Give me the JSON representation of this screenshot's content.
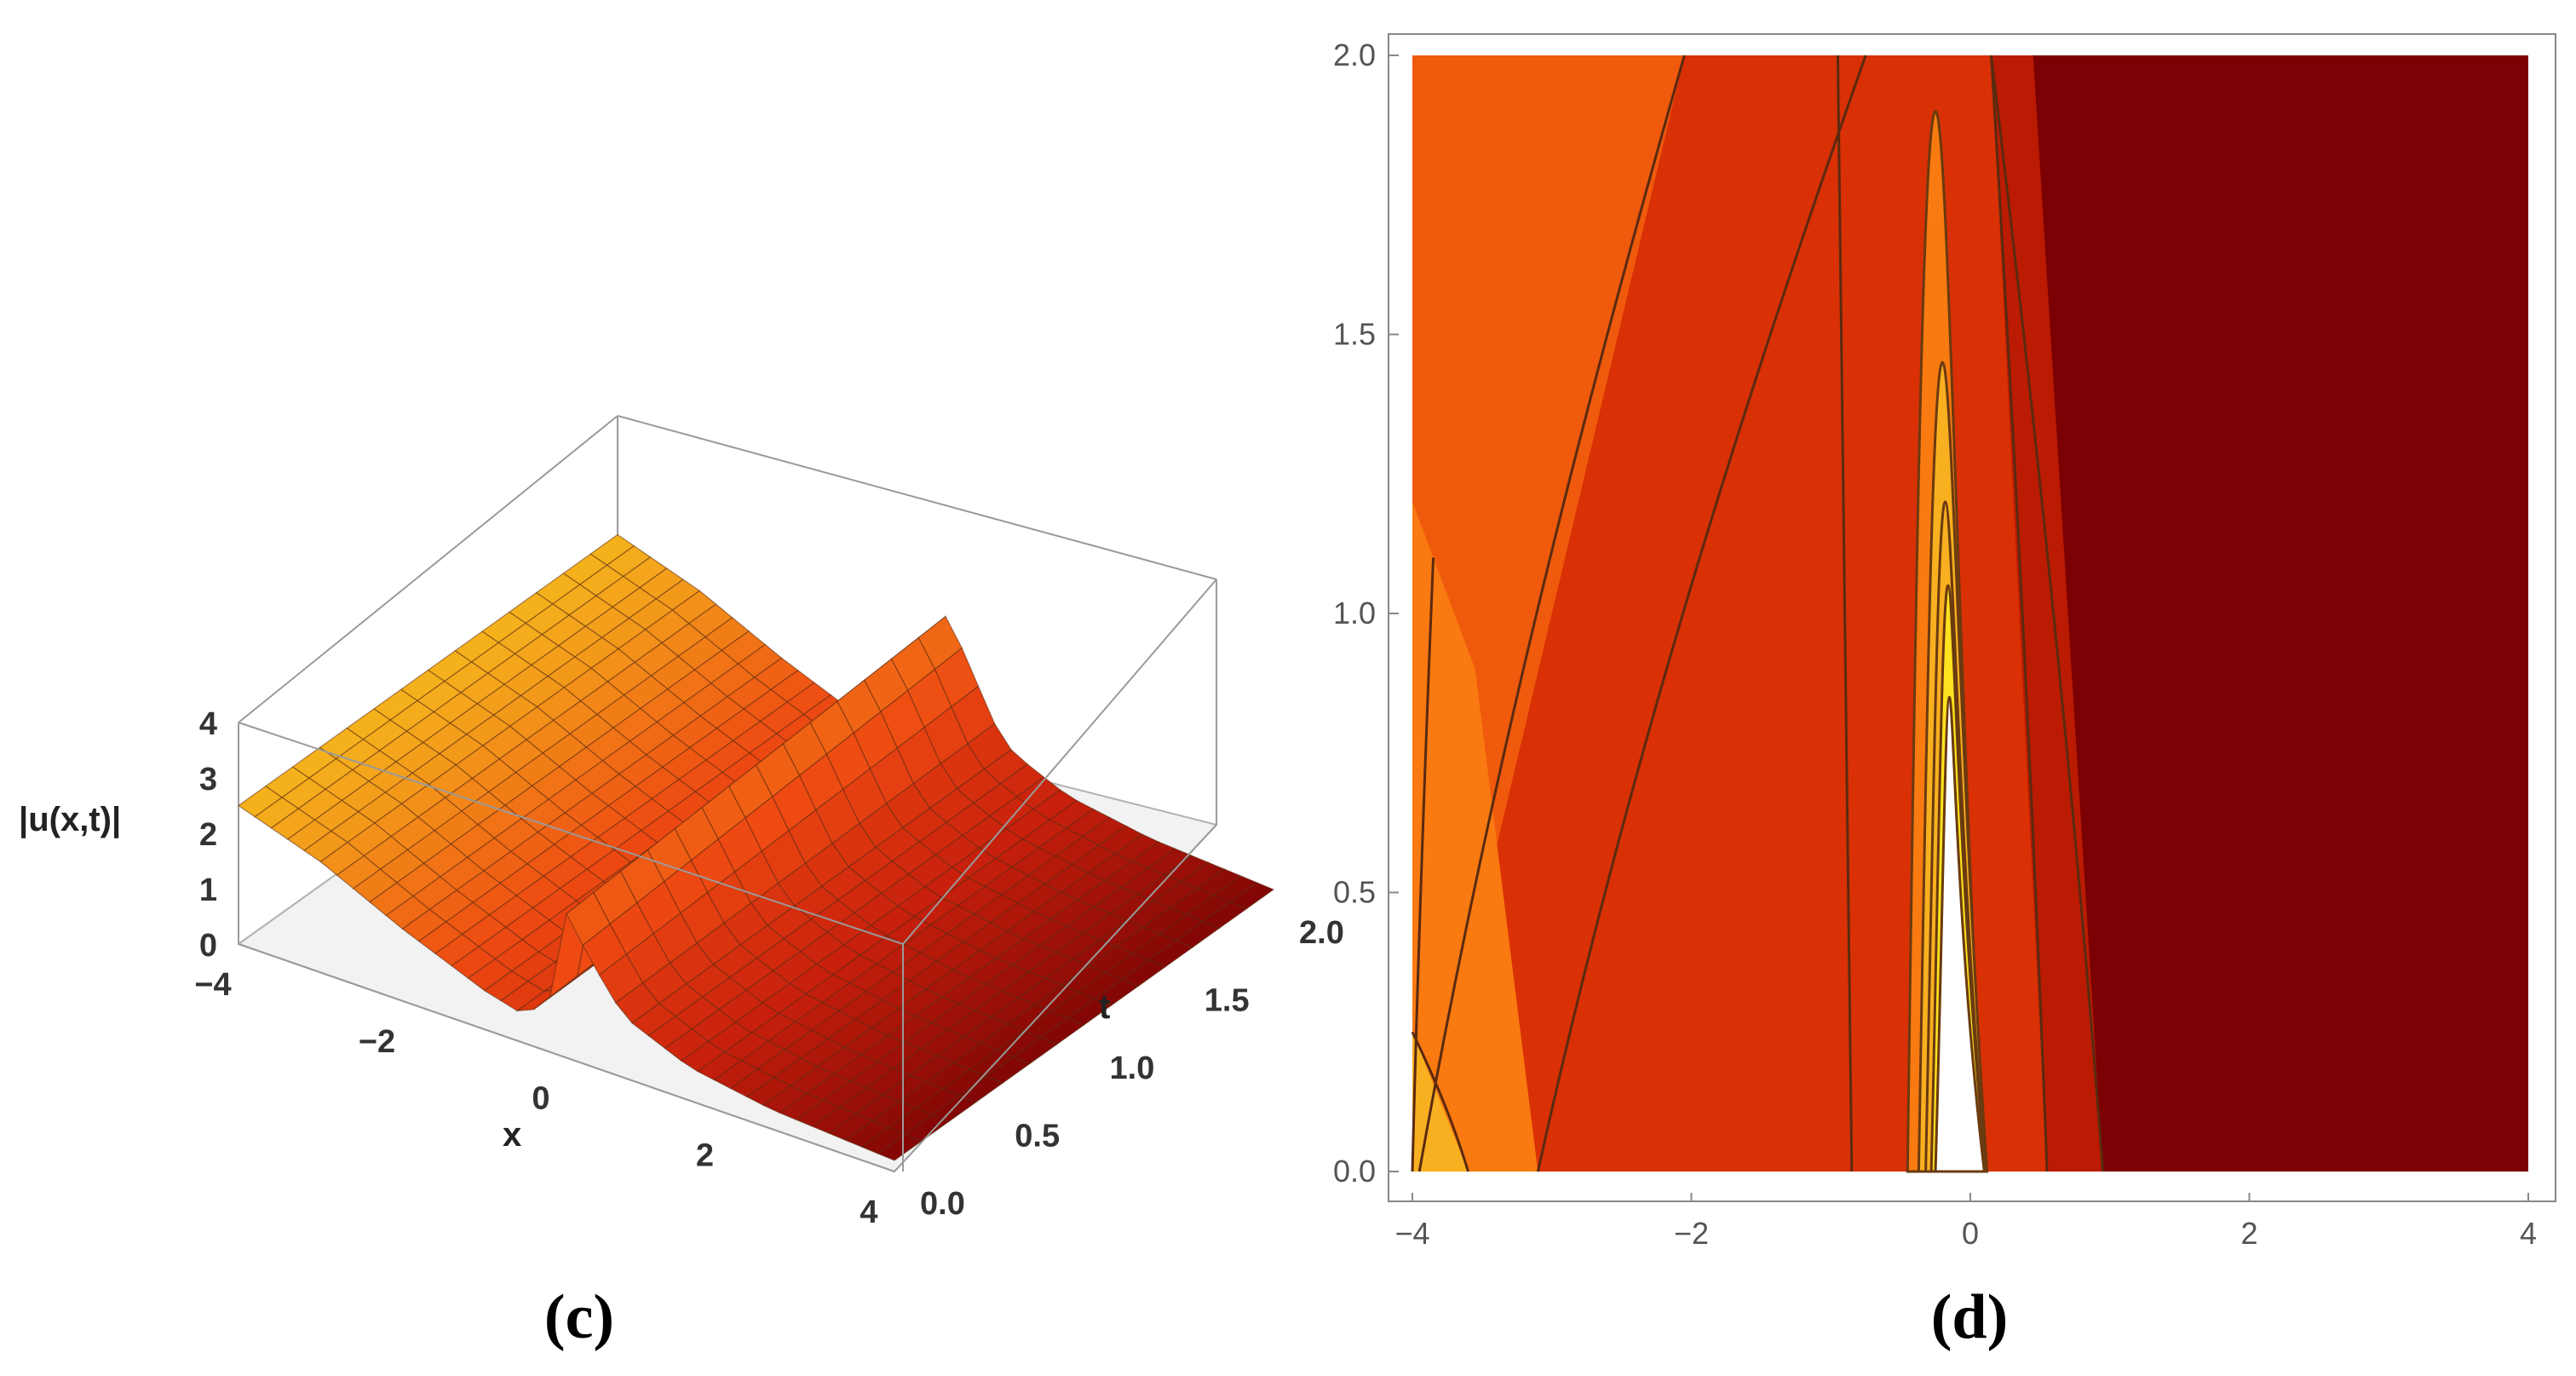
{
  "chart_data": [
    {
      "type": "surface3d",
      "caption": "(c)",
      "zlabel": "|u(x,t)|",
      "xlabel": "x",
      "ylabel": "t",
      "x_ticks": [
        "−4",
        "−2",
        "0",
        "2",
        "4"
      ],
      "t_ticks": [
        "0.0",
        "0.5",
        "1.0",
        "1.5",
        "2.0"
      ],
      "z_ticks": [
        "0",
        "1",
        "2",
        "3",
        "4"
      ],
      "xlim": [
        -4,
        4
      ],
      "tlim": [
        0,
        2
      ],
      "zlim": [
        0,
        4
      ],
      "colormap": [
        "#f7d520",
        "#f39a1a",
        "#ee4a12",
        "#c8200c",
        "#7b0404"
      ],
      "profile": {
        "x": [
          -4,
          -3,
          -2,
          -1,
          -0.5,
          -0.2,
          0,
          0.3,
          0.7,
          1.5,
          2.5,
          4
        ],
        "u": [
          2.5,
          2.0,
          1.3,
          0.7,
          0.5,
          1.0,
          2.6,
          1.9,
          1.1,
          0.6,
          0.35,
          0.2
        ]
      },
      "clipped_region": "gray"
    },
    {
      "type": "contour",
      "caption": "(d)",
      "x_ticks": [
        "−4",
        "−2",
        "0",
        "2",
        "4"
      ],
      "y_ticks": [
        "0.0",
        "0.5",
        "1.0",
        "1.5",
        "2.0"
      ],
      "xlim": [
        -4,
        4
      ],
      "ylim": [
        0,
        2
      ],
      "bands": [
        {
          "color": "#f97a10"
        },
        {
          "color": "#ef5a0c"
        },
        {
          "color": "#d93005"
        },
        {
          "color": "#bb1b02"
        },
        {
          "color": "#7b0104"
        },
        {
          "color": "#f9b020"
        },
        {
          "color": "#fde21f"
        },
        {
          "color": "#ffffff"
        }
      ],
      "contour_lines": [
        {
          "x0": -3.95,
          "x1": -2.05,
          "y_end": 2.0
        },
        {
          "x0": -3.1,
          "x1": -0.75,
          "y_end": 2.0
        },
        {
          "x0": -0.85,
          "x1": -0.95,
          "y_end": 2.0
        },
        {
          "x0": 0.55,
          "x1": 0.15,
          "y_end": 2.0
        },
        {
          "x0": 0.95,
          "x1": 0.15,
          "y_end": 2.0
        },
        {
          "x0": -3.6,
          "x1": -4.0,
          "y_end": 0.25
        },
        {
          "x0": -4.0,
          "x1": -3.85,
          "y_end": 1.1
        }
      ],
      "peaks": [
        {
          "center": -0.25,
          "halfwidth": 0.15,
          "top": 1.9
        },
        {
          "center": -0.2,
          "halfwidth": 0.12,
          "top": 1.45
        },
        {
          "center": -0.18,
          "halfwidth": 0.09,
          "top": 1.2
        },
        {
          "center": -0.16,
          "halfwidth": 0.07,
          "top": 1.05
        },
        {
          "center": -0.15,
          "halfwidth": 0.05,
          "top": 0.85
        }
      ]
    }
  ]
}
